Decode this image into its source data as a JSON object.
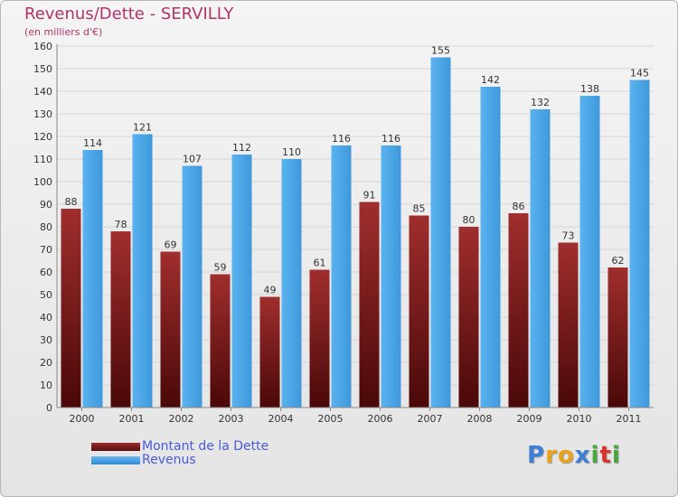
{
  "chart_data": {
    "type": "bar",
    "title": "Revenus/Dette - SERVILLY",
    "subtitle": "(en milliers d'€)",
    "categories": [
      "2000",
      "2001",
      "2002",
      "2003",
      "2004",
      "2005",
      "2006",
      "2007",
      "2008",
      "2009",
      "2010",
      "2011"
    ],
    "series": [
      {
        "name": "Montant de la Dette",
        "color": "#7a1c1c",
        "values": [
          88,
          78,
          69,
          59,
          49,
          61,
          91,
          85,
          80,
          86,
          73,
          62
        ]
      },
      {
        "name": "Revenus",
        "color": "#4ea6e8",
        "values": [
          114,
          121,
          107,
          112,
          110,
          116,
          116,
          155,
          142,
          132,
          138,
          145
        ]
      }
    ],
    "ylim": [
      0,
      160
    ],
    "ytick_step": 10,
    "grid": true,
    "legend": "bottom-left"
  },
  "logo": {
    "letters": [
      "P",
      "r",
      "o",
      "x",
      "i",
      "t",
      "i"
    ],
    "colors": [
      "#3d7fd6",
      "#e8a21b",
      "#e8a21b",
      "#3d7fd6",
      "#49a83d",
      "#d8342c",
      "#49a83d"
    ]
  }
}
